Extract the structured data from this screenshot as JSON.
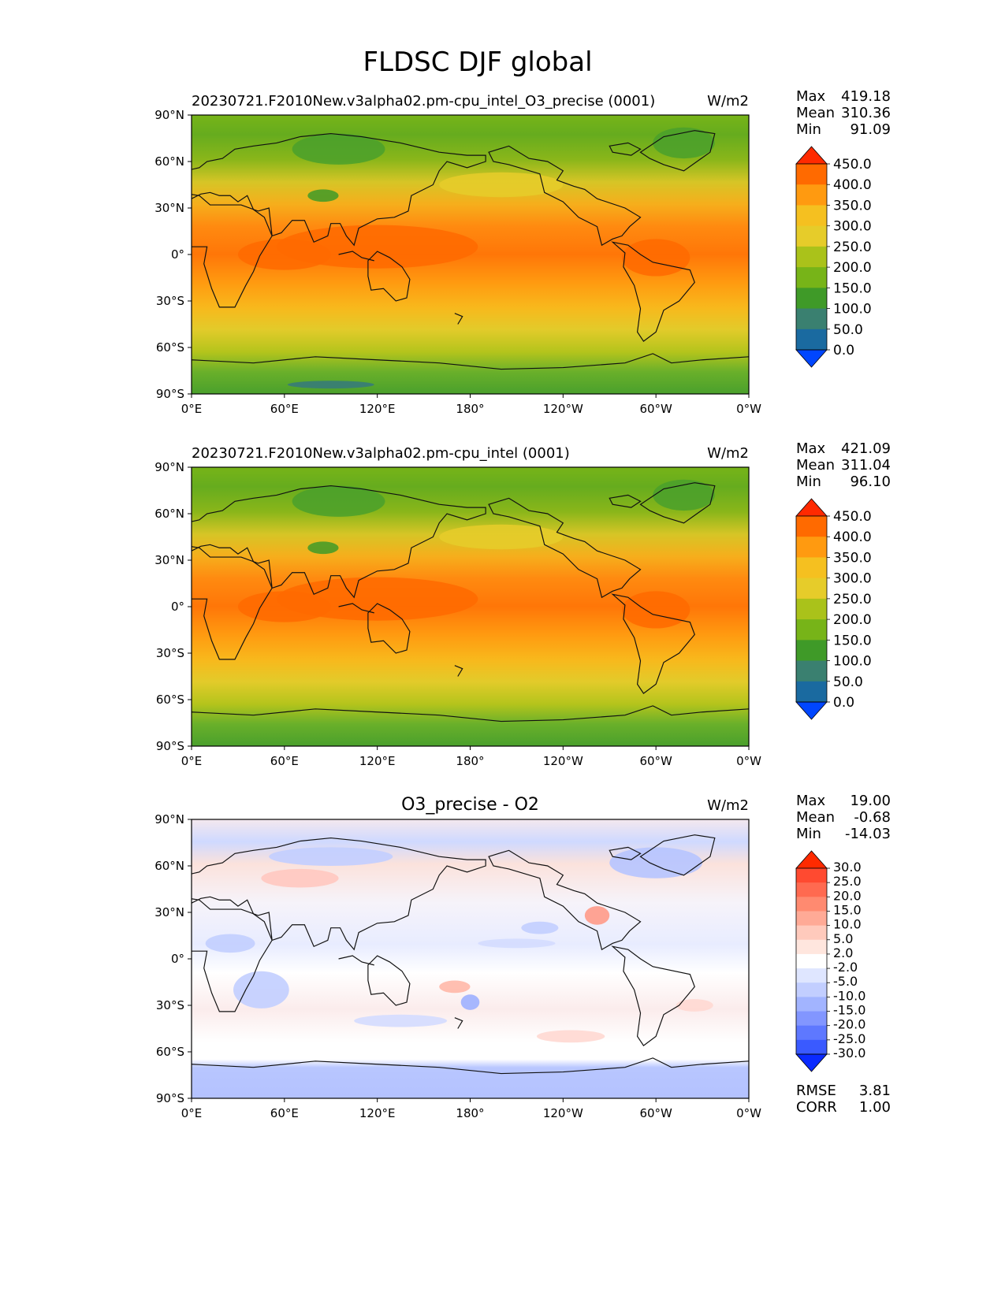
{
  "page_title": "FLDSC DJF global",
  "lat_ticks": [
    "90°N",
    "60°N",
    "30°N",
    "0°",
    "30°S",
    "60°S",
    "90°S"
  ],
  "lon_ticks": [
    "0°E",
    "60°E",
    "120°E",
    "180°",
    "120°W",
    "60°W",
    "0°W"
  ],
  "chart_data": [
    {
      "type": "heatmap",
      "title": "20230721.F2010New.v3alpha02.pm-cpu_intel_O3_precise (0001)",
      "units": "W/m2",
      "stats": {
        "max": "419.18",
        "mean": "310.36",
        "min": "91.09"
      },
      "stat_labels": [
        "Max",
        "Mean",
        "Min"
      ],
      "colorbar": {
        "levels": [
          "450.0",
          "400.0",
          "350.0",
          "300.0",
          "250.0",
          "200.0",
          "150.0",
          "100.0",
          "50.0",
          "0.0"
        ],
        "colors": [
          "#ff2a00",
          "#ff6a00",
          "#ff9a10",
          "#f5c020",
          "#e6cc2a",
          "#aac21a",
          "#77b418",
          "#3f9a28",
          "#3a8070",
          "#1a6aa0",
          "#0046ff"
        ]
      },
      "xlim": [
        0,
        360
      ],
      "ylim": [
        -90,
        90
      ]
    },
    {
      "type": "heatmap",
      "title": "20230721.F2010New.v3alpha02.pm-cpu_intel (0001)",
      "units": "W/m2",
      "stats": {
        "max": "421.09",
        "mean": "311.04",
        "min": "96.10"
      },
      "stat_labels": [
        "Max",
        "Mean",
        "Min"
      ],
      "colorbar": {
        "levels": [
          "450.0",
          "400.0",
          "350.0",
          "300.0",
          "250.0",
          "200.0",
          "150.0",
          "100.0",
          "50.0",
          "0.0"
        ],
        "colors": [
          "#ff2a00",
          "#ff6a00",
          "#ff9a10",
          "#f5c020",
          "#e6cc2a",
          "#aac21a",
          "#77b418",
          "#3f9a28",
          "#3a8070",
          "#1a6aa0",
          "#0046ff"
        ]
      },
      "xlim": [
        0,
        360
      ],
      "ylim": [
        -90,
        90
      ]
    },
    {
      "type": "heatmap",
      "title": "O3_precise - O2",
      "units": "W/m2",
      "stats": {
        "max": "19.00",
        "mean": "-0.68",
        "min": "-14.03"
      },
      "stat_labels": [
        "Max",
        "Mean",
        "Min"
      ],
      "colorbar": {
        "levels": [
          "30.0",
          "25.0",
          "20.0",
          "15.0",
          "10.0",
          "5.0",
          "2.0",
          "-2.0",
          "-5.0",
          "-10.0",
          "-15.0",
          "-20.0",
          "-25.0",
          "-30.0"
        ],
        "colors": [
          "#ff2a00",
          "#ff4a30",
          "#ff6a50",
          "#ff8a70",
          "#ffaa96",
          "#ffcabc",
          "#ffe6de",
          "#ffffff",
          "#dfe6ff",
          "#c2ceff",
          "#a2b4ff",
          "#8296ff",
          "#5e78ff",
          "#3a5aff",
          "#0a2aff"
        ]
      },
      "rmse_label": "RMSE",
      "rmse": "3.81",
      "corr_label": "CORR",
      "corr": "1.00",
      "xlim": [
        0,
        360
      ],
      "ylim": [
        -90,
        90
      ]
    }
  ]
}
